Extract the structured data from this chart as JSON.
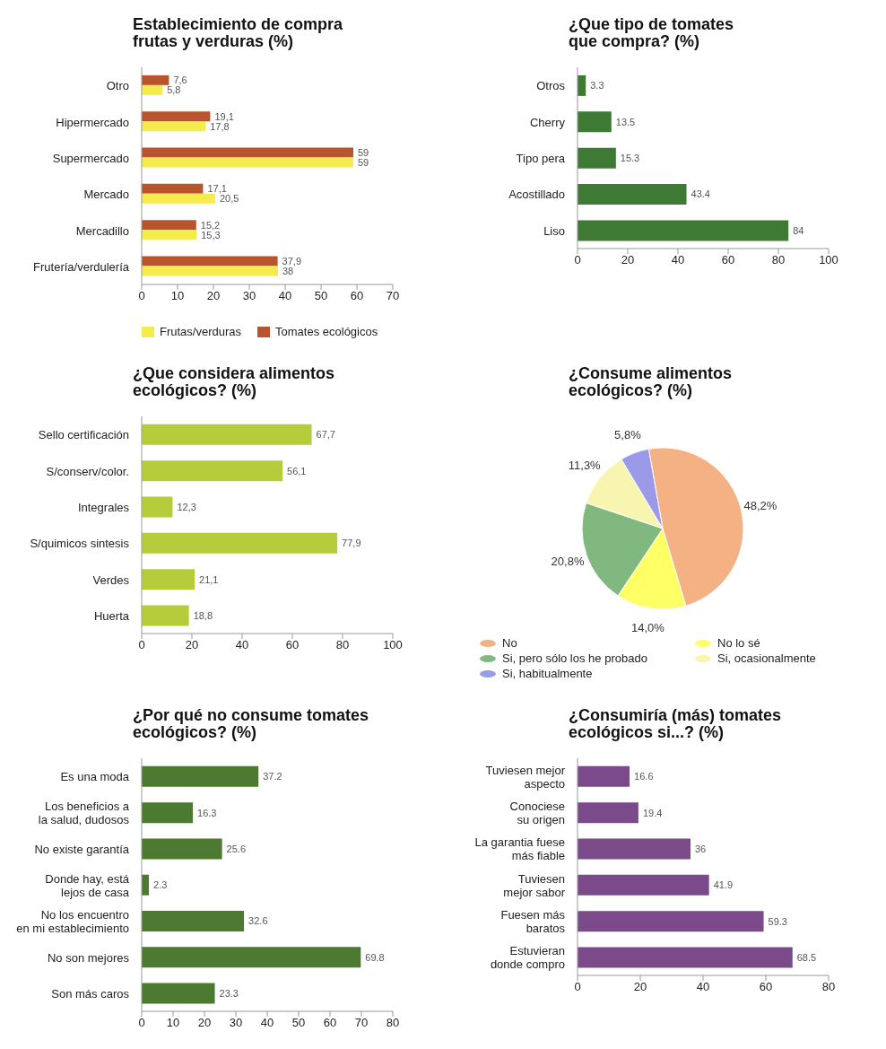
{
  "chart_data": [
    {
      "type": "bar",
      "orientation": "horizontal",
      "title": "Establecimiento de compra\nfrutas y verduras (%)",
      "categories": [
        "Otro",
        "Hipermercado",
        "Supermercado",
        "Mercado",
        "Mercadillo",
        "Frutería/verdulería"
      ],
      "xlim": [
        0,
        70
      ],
      "xticks": [
        0,
        10,
        20,
        30,
        40,
        50,
        60,
        70
      ],
      "legend": "bottom",
      "series": [
        {
          "name": "Tomates ecológicos",
          "color": "#b8552e",
          "values": [
            7.6,
            19.1,
            59,
            17.1,
            15.2,
            37.9
          ],
          "value_labels": [
            "7,6",
            "19,1",
            "59",
            "17,1",
            "15,2",
            "37,9"
          ]
        },
        {
          "name": "Frutas/verduras",
          "color": "#f3ec4c",
          "values": [
            5.8,
            17.8,
            59,
            20.5,
            15.3,
            38
          ],
          "value_labels": [
            "5,8",
            "17,8",
            "59",
            "20,5",
            "15,3",
            "38"
          ]
        }
      ]
    },
    {
      "type": "bar",
      "orientation": "horizontal",
      "title": "¿Que tipo de tomates\nque compra? (%)",
      "categories": [
        "Otros",
        "Cherry",
        "Tipo pera",
        "Acostillado",
        "Liso"
      ],
      "values": [
        3.3,
        13.5,
        15.3,
        43.4,
        84
      ],
      "color": "#3f7a35",
      "xlim": [
        0,
        100
      ],
      "xticks": [
        0,
        20,
        40,
        60,
        80,
        100
      ],
      "data_labels": true
    },
    {
      "type": "bar",
      "orientation": "horizontal",
      "title": "¿Que considera alimentos\necológicos? (%)",
      "categories": [
        "Sello certificación",
        "S/conserv/color.",
        "Integrales",
        "S/quimicos sintesis",
        "Verdes",
        "Huerta"
      ],
      "values": [
        67.7,
        56.1,
        12.3,
        77.9,
        21.1,
        18.8
      ],
      "value_labels": [
        "67,7",
        "56,1",
        "12,3",
        "77,9",
        "21,1",
        "18,8"
      ],
      "color": "#b7cc3a",
      "xlim": [
        0,
        100
      ],
      "xticks": [
        0,
        20,
        40,
        60,
        80,
        100
      ]
    },
    {
      "type": "pie",
      "title": "¿Consume alimentos\necológicos? (%)",
      "categories": [
        "No",
        "No lo sé",
        "Si, pero sólo los he probado",
        "Si, ocasionalmente",
        "Si, habitualmente"
      ],
      "values": [
        48.2,
        14.0,
        20.8,
        11.3,
        5.8
      ],
      "value_labels": [
        "48,2%",
        "14,0%",
        "20,8%",
        "11,3%",
        "5,8%"
      ],
      "colors": [
        "#f4b183",
        "#ffff66",
        "#80b880",
        "#f8f5b0",
        "#9a9ae8"
      ],
      "legend": "bottom"
    },
    {
      "type": "bar",
      "orientation": "horizontal",
      "title": "¿Por qué no consume tomates\necológicos? (%)",
      "categories": [
        "Es una moda",
        "Los beneficios a\nla salud, dudosos",
        "No existe garantía",
        "Donde hay, está\nlejos de casa",
        "No los encuentro\nen mi establecimiento",
        "No son mejores",
        "Son más caros"
      ],
      "values": [
        37.2,
        16.3,
        25.6,
        2.3,
        32.6,
        69.8,
        23.3
      ],
      "color": "#4c7a30",
      "xlim": [
        0,
        80
      ],
      "xticks": [
        0,
        10,
        20,
        30,
        40,
        50,
        60,
        70,
        80
      ],
      "data_labels": true
    },
    {
      "type": "bar",
      "orientation": "horizontal",
      "title": "¿Consumiría (más) tomates\necológicos si...? (%)",
      "categories": [
        "Tuviesen mejor\naspecto",
        "Conociese\nsu origen",
        "La garantia fuese\nmás fiable",
        "Tuviesen\nmejor sabor",
        "Fuesen más\nbaratos",
        "Estuvieran\ndonde compro"
      ],
      "values": [
        16.6,
        19.4,
        36,
        41.9,
        59.3,
        68.5
      ],
      "color": "#7a4a8a",
      "xlim": [
        0,
        80
      ],
      "xticks": [
        0,
        20,
        40,
        60,
        80
      ],
      "data_labels": true
    }
  ]
}
